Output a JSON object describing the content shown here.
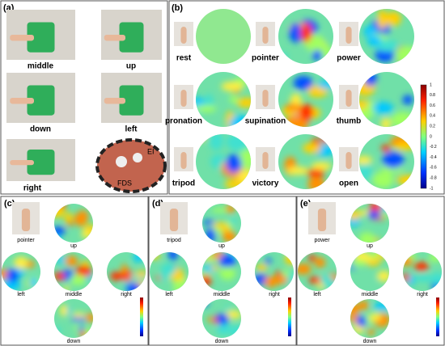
{
  "panel_a": {
    "label": "(a)",
    "photos": [
      "middle",
      "up",
      "down",
      "left",
      "right"
    ],
    "muscle": [
      "EI",
      "FDS"
    ]
  },
  "panel_b": {
    "label": "(b)",
    "gestures": [
      "rest",
      "pointer",
      "power",
      "pronation",
      "supination",
      "thumb",
      "tripod",
      "victory",
      "open"
    ],
    "colorbar": [
      1,
      0.8,
      0.6,
      0.4,
      0.2,
      0,
      -0.2,
      -0.4,
      -0.6,
      -0.8,
      -1
    ]
  },
  "panels": [
    {
      "label": "(c)",
      "gesture": "pointer",
      "positions": [
        "up",
        "left",
        "middle",
        "right",
        "down"
      ]
    },
    {
      "label": "(d)",
      "gesture": "tripod",
      "positions": [
        "up",
        "left",
        "middle",
        "right",
        "down"
      ]
    },
    {
      "label": "(e)",
      "gesture": "power",
      "positions": [
        "up",
        "left",
        "middle",
        "right",
        "down"
      ]
    }
  ]
}
